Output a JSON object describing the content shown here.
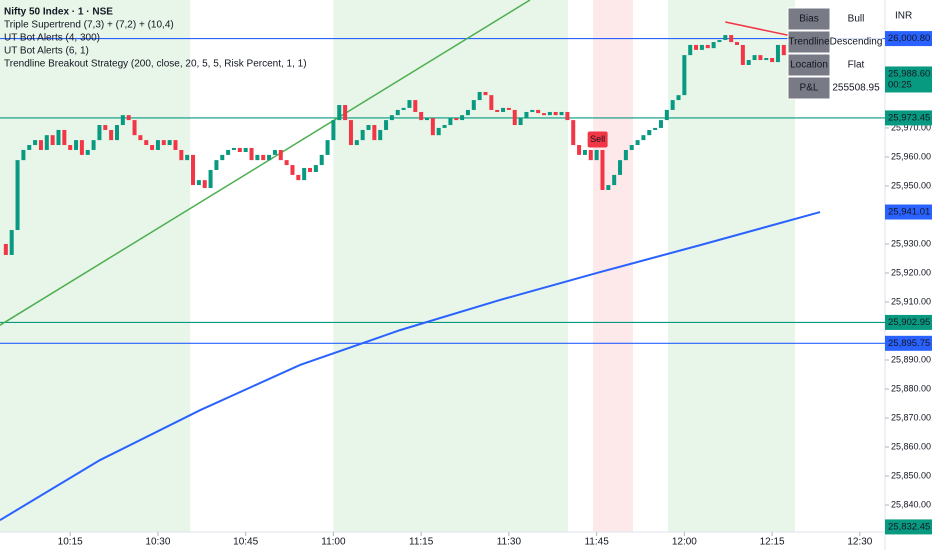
{
  "chart_data": {
    "type": "candlestick",
    "legend_lines": [
      "Nifty 50 Index · 1 · NSE",
      "Triple Supertrend (7,3) + (7,2) + (10,4)",
      "UT Bot Alerts (4, 300)",
      "UT Bot Alerts (6, 1)",
      "Trendline Breakout Strategy (200, close, 20, 5, 5, Risk Percent, 1, 1)"
    ],
    "currency": "INR",
    "xlim": [
      3,
      154.3
    ],
    "ylim": [
      25830.7,
      26014.1
    ],
    "xticks": [
      {
        "value": 15,
        "label": "10:15"
      },
      {
        "value": 30,
        "label": "10:30"
      },
      {
        "value": 45,
        "label": "10:45"
      },
      {
        "value": 60,
        "label": "11:00"
      },
      {
        "value": 75,
        "label": "11:15"
      },
      {
        "value": 90,
        "label": "11:30"
      },
      {
        "value": 105,
        "label": "11:45"
      },
      {
        "value": 120,
        "label": "12:00"
      },
      {
        "value": 135,
        "label": "12:15"
      },
      {
        "value": 150,
        "label": "12:30"
      }
    ],
    "yticks": [
      {
        "value": 25840,
        "label": "25,840.00"
      },
      {
        "value": 25850,
        "label": "25,850.00"
      },
      {
        "value": 25860,
        "label": "25,860.00"
      },
      {
        "value": 25870,
        "label": "25,870.00"
      },
      {
        "value": 25880,
        "label": "25,880.00"
      },
      {
        "value": 25890,
        "label": "25,890.00"
      },
      {
        "value": 25910,
        "label": "25,910.00"
      },
      {
        "value": 25920,
        "label": "25,920.00"
      },
      {
        "value": 25930,
        "label": "25,930.00"
      },
      {
        "value": 25940,
        "label": "25,940.00"
      },
      {
        "value": 25950,
        "label": "25,950.00"
      },
      {
        "value": 25960,
        "label": "25,960.00"
      },
      {
        "value": 25970,
        "label": "25,970.00"
      }
    ],
    "up_color": "#089981",
    "down_color": "#f23645",
    "zones": [
      {
        "from": 3,
        "to": 35.5,
        "color": "#e8f5e9"
      },
      {
        "from": 60,
        "to": 100.1,
        "color": "#e8f5e9"
      },
      {
        "from": 117.2,
        "to": 138.9,
        "color": "#e8f5e9"
      },
      {
        "from": 104.4,
        "to": 111.2,
        "color": "#fde8ea"
      }
    ],
    "x": [
      4,
      5,
      6,
      7,
      8,
      9,
      10,
      11,
      12,
      13,
      14,
      15,
      16,
      17,
      18,
      19,
      20,
      21,
      22,
      23,
      24,
      25,
      26,
      27,
      28,
      29,
      30,
      31,
      32,
      33,
      34,
      35,
      36,
      37,
      38,
      39,
      40,
      41,
      42,
      43,
      44,
      45,
      46,
      47,
      48,
      49,
      50,
      51,
      52,
      53,
      54,
      55,
      56,
      57,
      58,
      59,
      60,
      61,
      62,
      63,
      64,
      65,
      66,
      67,
      68,
      69,
      70,
      71,
      72,
      73,
      74,
      75,
      76,
      77,
      78,
      79,
      80,
      81,
      82,
      83,
      84,
      85,
      86,
      87,
      88,
      89,
      90,
      91,
      92,
      93,
      94,
      95,
      96,
      97,
      98,
      99,
      100,
      101,
      102,
      103,
      104,
      105,
      106,
      107,
      108,
      109,
      110,
      111,
      112,
      113,
      114,
      115,
      116,
      117,
      118,
      119,
      120,
      121,
      122,
      123,
      124,
      125,
      126,
      127,
      128,
      129,
      130,
      131,
      132,
      133,
      134,
      135,
      136,
      137,
      138,
      139,
      140
    ],
    "open": [
      25930.0,
      25926.2,
      25934.8,
      25958.9,
      25962.4,
      25964.1,
      25965.8,
      25962.4,
      25967.5,
      25964.1,
      25969.3,
      25964.1,
      25962.4,
      25965.8,
      25960.7,
      25962.4,
      25965.8,
      25971.0,
      25969.3,
      25965.8,
      25971.0,
      25974.4,
      25972.7,
      25967.5,
      25965.8,
      25964.1,
      25962.4,
      25965.8,
      25964.1,
      25965.8,
      25962.4,
      25958.9,
      25960.7,
      25950.3,
      25952.0,
      25949.3,
      25955.5,
      25958.9,
      25960.7,
      25962.4,
      25963.1,
      25961.7,
      25963.1,
      25958.9,
      25960.7,
      25958.9,
      25960.7,
      25962.4,
      25958.9,
      25957.2,
      25953.8,
      25952.0,
      25956.2,
      25954.8,
      25957.2,
      25960.7,
      25965.8,
      25972.7,
      25977.9,
      25972.7,
      25964.1,
      25965.8,
      25969.3,
      25971.0,
      25965.8,
      25969.3,
      25972.7,
      25974.4,
      25976.2,
      25976.9,
      25979.6,
      25975.5,
      25972.7,
      25973.4,
      25967.5,
      25970.0,
      25971.0,
      25973.4,
      25972.7,
      25974.4,
      25976.2,
      25979.6,
      25982.4,
      25981.3,
      25976.2,
      25975.5,
      25976.9,
      25976.2,
      25971.0,
      25973.4,
      25975.5,
      25976.2,
      25975.1,
      25974.4,
      25975.5,
      25974.4,
      25975.5,
      25972.7,
      25964.1,
      25960.7,
      25962.4,
      25958.9,
      25962.4,
      25948.6,
      25950.3,
      25953.8,
      25958.9,
      25962.4,
      25964.1,
      25965.8,
      25967.5,
      25969.3,
      25970.0,
      25972.7,
      25976.2,
      25979.6,
      25981.3,
      25995.1,
      25998.6,
      25996.9,
      25998.6,
      25997.5,
      25999.6,
      26000.3,
      26002.0,
      25999.6,
      25998.6,
      25991.7,
      25993.4,
      25995.1,
      25993.4,
      25994.1,
      25992.7,
      25998.6,
      25995.1,
      25997.5,
      25998.6
    ],
    "close": [
      25926.2,
      25934.8,
      25958.9,
      25962.4,
      25964.1,
      25965.8,
      25962.4,
      25967.5,
      25964.1,
      25969.3,
      25964.1,
      25962.4,
      25965.8,
      25960.7,
      25962.4,
      25965.8,
      25971.0,
      25969.3,
      25965.8,
      25971.0,
      25974.4,
      25972.7,
      25967.5,
      25965.8,
      25964.1,
      25962.4,
      25965.8,
      25964.1,
      25965.8,
      25962.4,
      25958.9,
      25960.7,
      25950.3,
      25952.0,
      25949.3,
      25955.5,
      25958.9,
      25960.7,
      25962.4,
      25963.1,
      25961.7,
      25963.1,
      25958.9,
      25960.7,
      25958.9,
      25960.7,
      25962.4,
      25958.9,
      25957.2,
      25953.8,
      25952.0,
      25956.2,
      25954.8,
      25957.2,
      25960.7,
      25965.8,
      25972.7,
      25977.9,
      25972.7,
      25964.1,
      25965.8,
      25969.3,
      25971.0,
      25965.8,
      25969.3,
      25972.7,
      25974.4,
      25976.2,
      25976.9,
      25979.6,
      25975.5,
      25972.7,
      25973.4,
      25967.5,
      25970.0,
      25971.0,
      25973.4,
      25972.7,
      25974.4,
      25976.2,
      25979.6,
      25982.4,
      25981.3,
      25976.2,
      25975.5,
      25976.9,
      25976.2,
      25971.0,
      25973.4,
      25975.5,
      25976.2,
      25975.1,
      25974.4,
      25975.5,
      25974.4,
      25975.5,
      25972.7,
      25964.1,
      25960.7,
      25962.4,
      25958.9,
      25962.4,
      25948.6,
      25950.3,
      25953.8,
      25958.9,
      25962.4,
      25964.1,
      25965.8,
      25967.5,
      25969.3,
      25970.0,
      25972.7,
      25976.2,
      25979.6,
      25981.3,
      25995.1,
      25998.6,
      25996.9,
      25998.6,
      25997.5,
      25999.6,
      26000.3,
      26002.0,
      25999.6,
      25998.6,
      25991.7,
      25993.4,
      25995.1,
      25993.4,
      25994.1,
      25992.7,
      25998.6,
      25995.1,
      25997.5,
      25998.6,
      25988.6
    ],
    "overlays": [
      {
        "color": "#2962ff",
        "width": 2,
        "x": [
          3,
          20.1,
          37.2,
          54.3,
          71.4,
          88.5,
          105.6,
          122.7,
          143.2
        ],
        "values": [
          25834.8,
          25855.5,
          25872.7,
          25888.3,
          25900.3,
          25910.7,
          25920.3,
          25929.6,
          25941.0
        ]
      },
      {
        "color": "#4caf50",
        "width": 1.5,
        "x": [
          3,
          93.6
        ],
        "values": [
          25902.0,
          26014.1
        ]
      },
      {
        "color": "#f23645",
        "width": 1.5,
        "x": [
          127,
          140
        ],
        "values": [
          26006.5,
          26001.0
        ]
      }
    ],
    "levels": [
      {
        "value": 26000.8,
        "label": "26,000.80",
        "color": "#2962ff",
        "line": true
      },
      {
        "value": 25988.6,
        "label": "25,988.60",
        "sub": "00:25",
        "color": "#089981",
        "line": false
      },
      {
        "value": 25973.45,
        "label": "25,973.45",
        "color": "#089981",
        "line": true
      },
      {
        "value": 25941.01,
        "label": "25,941.01",
        "color": "#2962ff",
        "line": false
      },
      {
        "value": 25902.95,
        "label": "25,902.95",
        "color": "#089981",
        "line": true
      },
      {
        "value": 25895.75,
        "label": "25,895.75",
        "color": "#2962ff",
        "line": true
      },
      {
        "value": 25832.45,
        "label": "25,832.45",
        "color": "#089981",
        "line": false
      }
    ],
    "annotations": [
      {
        "text": "Sell",
        "x": 105,
        "y": 25966
      }
    ],
    "info_table": [
      {
        "label": "Bias",
        "value": "Bull",
        "color": "#4caf50"
      },
      {
        "label": "Trendline",
        "value": "Descending",
        "color": "#333333"
      },
      {
        "label": "Location",
        "value": "Flat",
        "color": "#333333"
      },
      {
        "label": "P&L",
        "value": "255508.95",
        "color": "#4caf50"
      }
    ]
  }
}
